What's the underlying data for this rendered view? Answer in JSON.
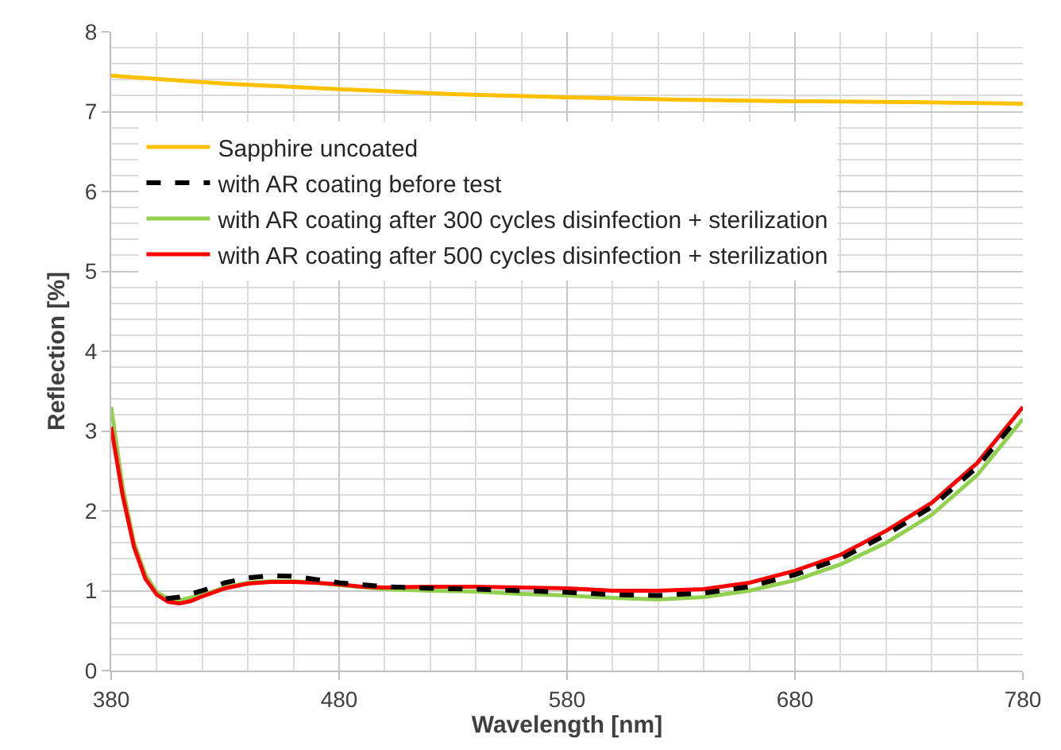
{
  "chart_data": {
    "type": "line",
    "xlabel": "Wavelength [nm]",
    "ylabel": "Reflection [%]",
    "xlim": [
      380,
      780
    ],
    "xticks": [
      380,
      480,
      580,
      680,
      780
    ],
    "ylim": [
      0,
      8
    ],
    "yticks": [
      0,
      1,
      2,
      3,
      4,
      5,
      6,
      7,
      8
    ],
    "grid": true,
    "legend": "top left",
    "marker": "none",
    "series": [
      {
        "name": "Sapphire uncoated",
        "color": "#ffc000",
        "line_style": "solid",
        "x": [
          380,
          430,
          480,
          530,
          580,
          630,
          680,
          730,
          780
        ],
        "values": [
          7.45,
          7.35,
          7.28,
          7.22,
          7.18,
          7.15,
          7.13,
          7.12,
          7.1
        ]
      },
      {
        "name": "with AR coating before test",
        "color": "#000000",
        "line_style": "dashed",
        "x": [
          404,
          410,
          420,
          430,
          440,
          450,
          460,
          470,
          480,
          500,
          520,
          540,
          560,
          580,
          600,
          620,
          640,
          660,
          680,
          700,
          720,
          740,
          760,
          776
        ],
        "values": [
          0.9,
          0.92,
          1.0,
          1.1,
          1.16,
          1.19,
          1.18,
          1.14,
          1.1,
          1.05,
          1.03,
          1.02,
          1.0,
          0.98,
          0.95,
          0.94,
          0.97,
          1.05,
          1.2,
          1.4,
          1.7,
          2.05,
          2.55,
          3.1
        ]
      },
      {
        "name": "with AR coating after 300 cycles disinfection + sterilization",
        "color": "#92d050",
        "line_style": "solid",
        "x": [
          380,
          385,
          390,
          395,
          400,
          405,
          410,
          420,
          430,
          440,
          450,
          460,
          470,
          480,
          500,
          520,
          540,
          560,
          580,
          600,
          620,
          640,
          660,
          680,
          700,
          720,
          740,
          760,
          780
        ],
        "values": [
          3.3,
          2.3,
          1.6,
          1.2,
          0.98,
          0.9,
          0.88,
          0.95,
          1.04,
          1.1,
          1.12,
          1.12,
          1.1,
          1.07,
          1.02,
          1.0,
          0.99,
          0.96,
          0.94,
          0.91,
          0.89,
          0.92,
          1.0,
          1.13,
          1.33,
          1.6,
          1.95,
          2.45,
          3.15
        ]
      },
      {
        "name": "with AR coating after 500 cycles disinfection + sterilization",
        "color": "#ff0000",
        "line_style": "solid",
        "x": [
          380,
          385,
          390,
          395,
          400,
          405,
          410,
          415,
          420,
          430,
          440,
          450,
          460,
          470,
          480,
          490,
          500,
          520,
          540,
          560,
          580,
          600,
          620,
          640,
          660,
          680,
          700,
          720,
          740,
          760,
          780
        ],
        "values": [
          3.05,
          2.2,
          1.55,
          1.15,
          0.95,
          0.86,
          0.84,
          0.87,
          0.93,
          1.03,
          1.09,
          1.11,
          1.11,
          1.1,
          1.08,
          1.05,
          1.04,
          1.05,
          1.05,
          1.04,
          1.03,
          1.0,
          1.0,
          1.02,
          1.1,
          1.25,
          1.45,
          1.75,
          2.1,
          2.6,
          3.3
        ]
      }
    ]
  }
}
